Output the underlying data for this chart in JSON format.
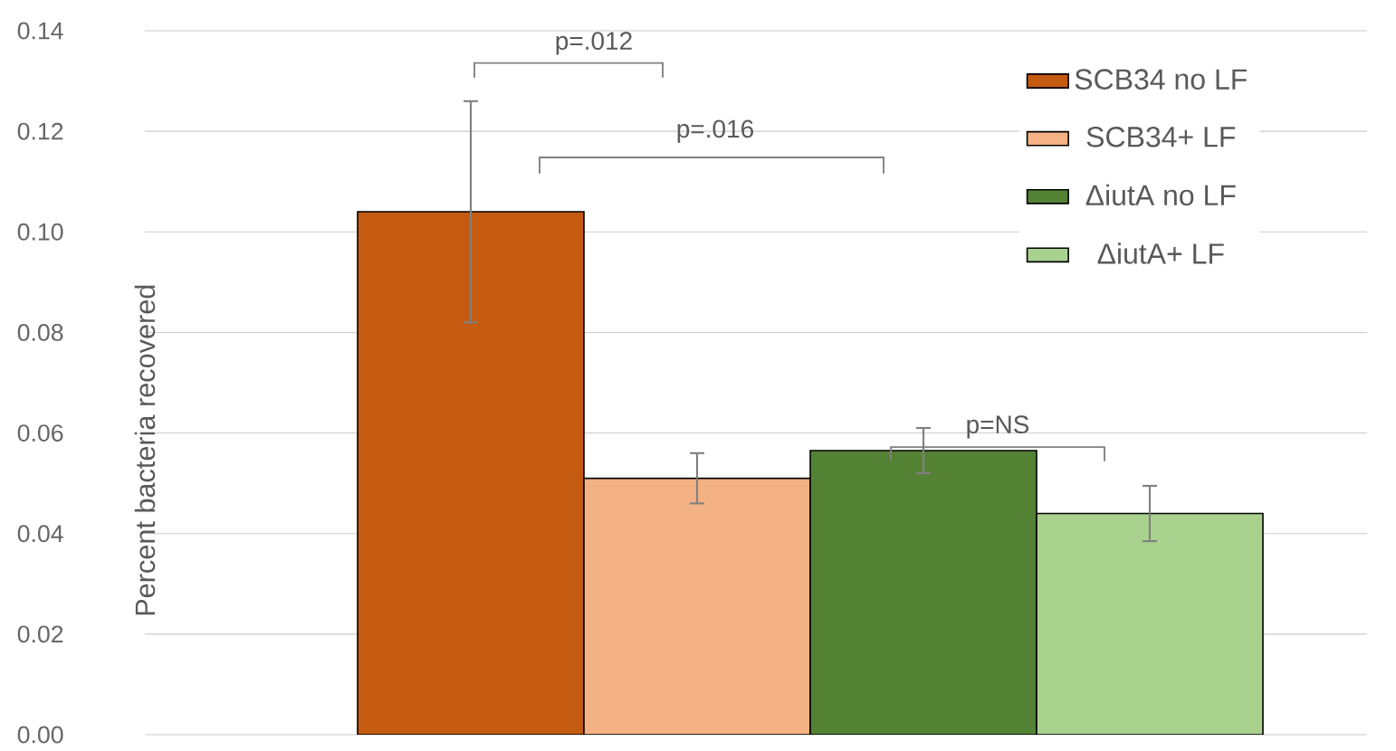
{
  "chart_data": {
    "type": "bar",
    "ylabel": "Percent bacteria recovered",
    "categories": [
      null
    ],
    "series": [
      {
        "name": "SCB34 no LF",
        "color": "#c55a11",
        "values": [
          0.104
        ],
        "errors": [
          0.022
        ]
      },
      {
        "name": "SCB34+ LF",
        "color": "#f4b183",
        "values": [
          0.051
        ],
        "errors": [
          0.005
        ]
      },
      {
        "name": "ΔiutA no LF",
        "color": "#548235",
        "values": [
          0.0565
        ],
        "errors": [
          0.0045
        ]
      },
      {
        "name": "ΔiutA+ LF",
        "color": "#a9d18e",
        "values": [
          0.044
        ],
        "errors": [
          0.0055
        ]
      }
    ],
    "ylim": [
      0,
      0.14
    ],
    "yticks": [
      {
        "value": 0,
        "label": "0.00"
      },
      {
        "value": 0.02,
        "label": "0.02"
      },
      {
        "value": 0.04,
        "label": "0.04"
      },
      {
        "value": 0.06,
        "label": "0.06"
      },
      {
        "value": 0.08,
        "label": "0.08"
      },
      {
        "value": 0.1,
        "label": "0.10"
      },
      {
        "value": 0.12,
        "label": "0.12"
      },
      {
        "value": 0.14,
        "label": "0.14"
      }
    ],
    "grid": "y",
    "legend": "top right",
    "annotations": [
      "p=.012",
      "p=.016",
      "p=NS"
    ]
  }
}
